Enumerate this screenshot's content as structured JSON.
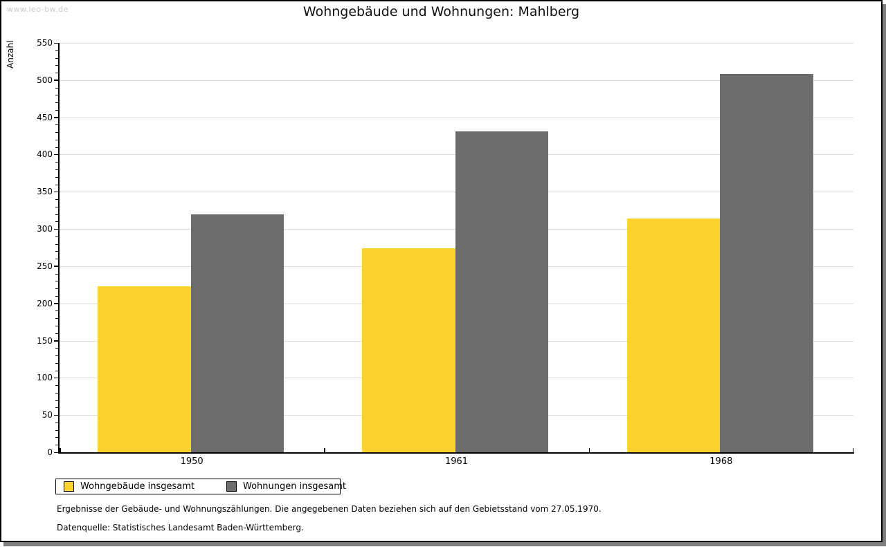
{
  "watermark": "www.leo-bw.de",
  "footnotes": [
    "Ergebnisse der Gebäude- und Wohnungszählungen. Die angegebenen Daten beziehen sich auf den Gebietsstand vom 27.05.1970.",
    "Datenquelle: Statistisches Landesamt Baden-Württemberg."
  ],
  "colors": {
    "series_yellow": "#fcd32c",
    "series_gray": "#6c6c6c",
    "gridline": "#dcdcdc",
    "axis": "#000000",
    "watermark": "#cbcbcb",
    "shadow": "#7d7d7d"
  },
  "chart_data": {
    "type": "bar",
    "title": "Wohngebäude und Wohnungen: Mahlberg",
    "xlabel": "",
    "ylabel": "Anzahl",
    "categories": [
      "1950",
      "1961",
      "1968"
    ],
    "series": [
      {
        "name": "Wohngebäude insgesamt",
        "color": "#fcd32c",
        "values": [
          223,
          274,
          314
        ]
      },
      {
        "name": "Wohnungen insgesamt",
        "color": "#6c6c6c",
        "values": [
          320,
          431,
          508
        ]
      }
    ],
    "ylim": [
      0,
      550
    ],
    "ytick_step": 50,
    "minor_tick_step": 10,
    "grid": true,
    "legend_position": "bottom-left"
  }
}
